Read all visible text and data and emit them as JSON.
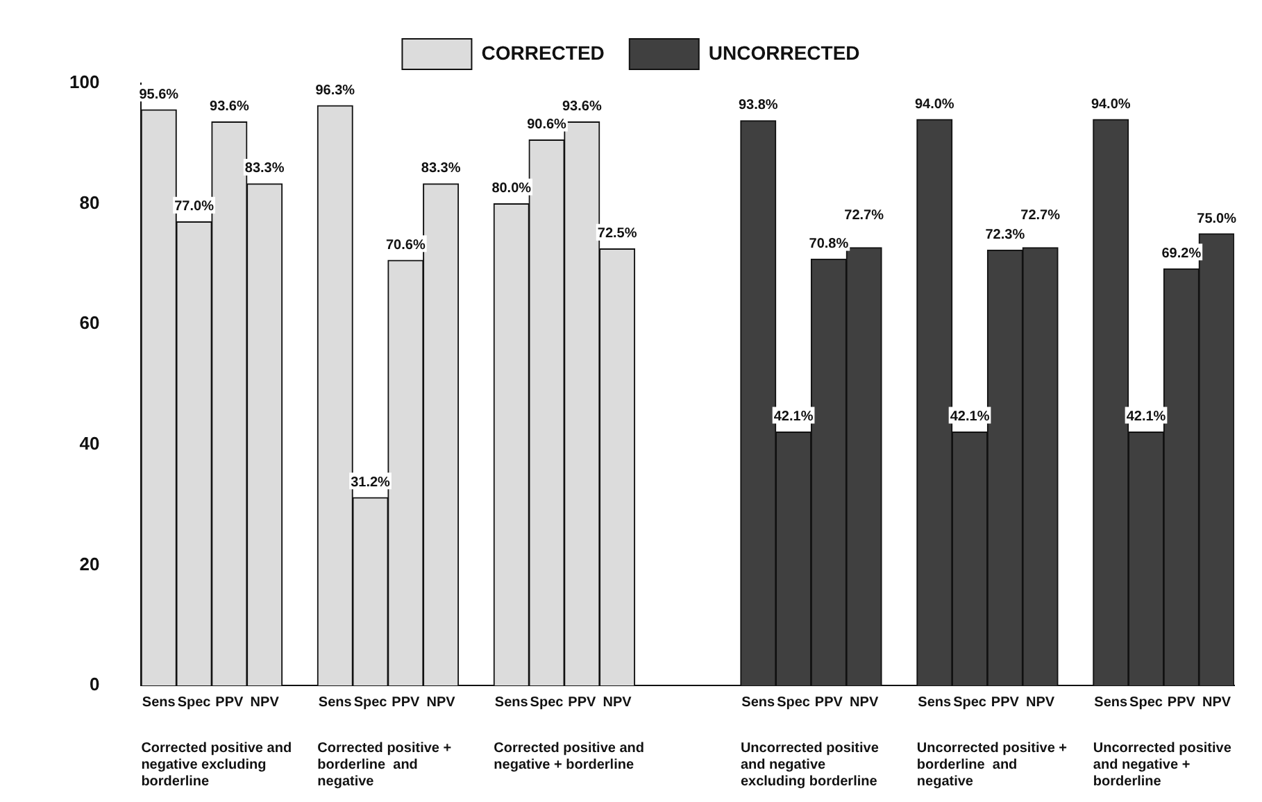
{
  "chart_data": {
    "type": "bar",
    "categories": [
      "Sens",
      "Spec",
      "PPV",
      "NPV",
      null,
      "Sens",
      "Spec",
      "PPV",
      "NPV",
      null,
      "Sens",
      "Spec",
      "PPV",
      "NPV",
      null,
      null,
      null,
      "Sens",
      "Spec",
      "PPV",
      "NPV",
      null,
      "Sens",
      "Spec",
      "PPV",
      "NPV",
      null,
      "Sens",
      "Spec",
      "PPV",
      "NPV"
    ],
    "series": [
      {
        "name": "CORRECTED",
        "color": "#dcdcdc",
        "values": [
          95.6,
          77.0,
          93.6,
          83.3,
          null,
          96.3,
          31.2,
          70.6,
          83.3,
          null,
          80.0,
          90.6,
          93.6,
          72.5,
          null,
          null,
          null,
          null,
          null,
          null,
          null,
          null,
          null,
          null,
          null,
          null,
          null,
          null,
          null,
          null,
          null
        ],
        "value_labels": [
          "95.6%",
          "77.0%",
          "93.6%",
          "83.3%",
          null,
          "96.3%",
          "31.2%",
          "70.6%",
          "83.3%",
          null,
          "80.0%",
          "90.6%",
          "93.6%",
          "72.5%",
          null,
          null,
          null,
          null,
          null,
          null,
          null,
          null,
          null,
          null,
          null,
          null,
          null,
          null,
          null,
          null,
          null
        ]
      },
      {
        "name": "UNCORRECTED",
        "color": "#404040",
        "values": [
          null,
          null,
          null,
          null,
          null,
          null,
          null,
          null,
          null,
          null,
          null,
          null,
          null,
          null,
          null,
          null,
          null,
          93.8,
          42.1,
          70.8,
          72.7,
          null,
          94.0,
          42.1,
          72.3,
          72.7,
          null,
          94.0,
          42.1,
          69.2,
          75.0
        ],
        "value_labels": [
          null,
          null,
          null,
          null,
          null,
          null,
          null,
          null,
          null,
          null,
          null,
          null,
          null,
          null,
          null,
          null,
          null,
          "93.8%",
          "42.1%",
          "70.8%",
          "72.7%",
          null,
          "94.0%",
          "42.1%",
          "72.3%",
          "72.7%",
          null,
          "94.0%",
          "42.1%",
          "69.2%",
          "75.0%"
        ]
      }
    ],
    "ylim": [
      0,
      100
    ],
    "yticks": [
      0,
      20,
      40,
      60,
      80,
      100
    ],
    "grid": false,
    "legend": "top",
    "annotations": [
      "Corrected positive and negative excluding borderline",
      "Corrected positive + borderline  and negative",
      "Corrected positive and negative + borderline",
      "Uncorrected positive and negative excluding borderline",
      "Uncorrected positive + borderline  and negative",
      "Uncorrected positive and negative + borderline"
    ]
  }
}
